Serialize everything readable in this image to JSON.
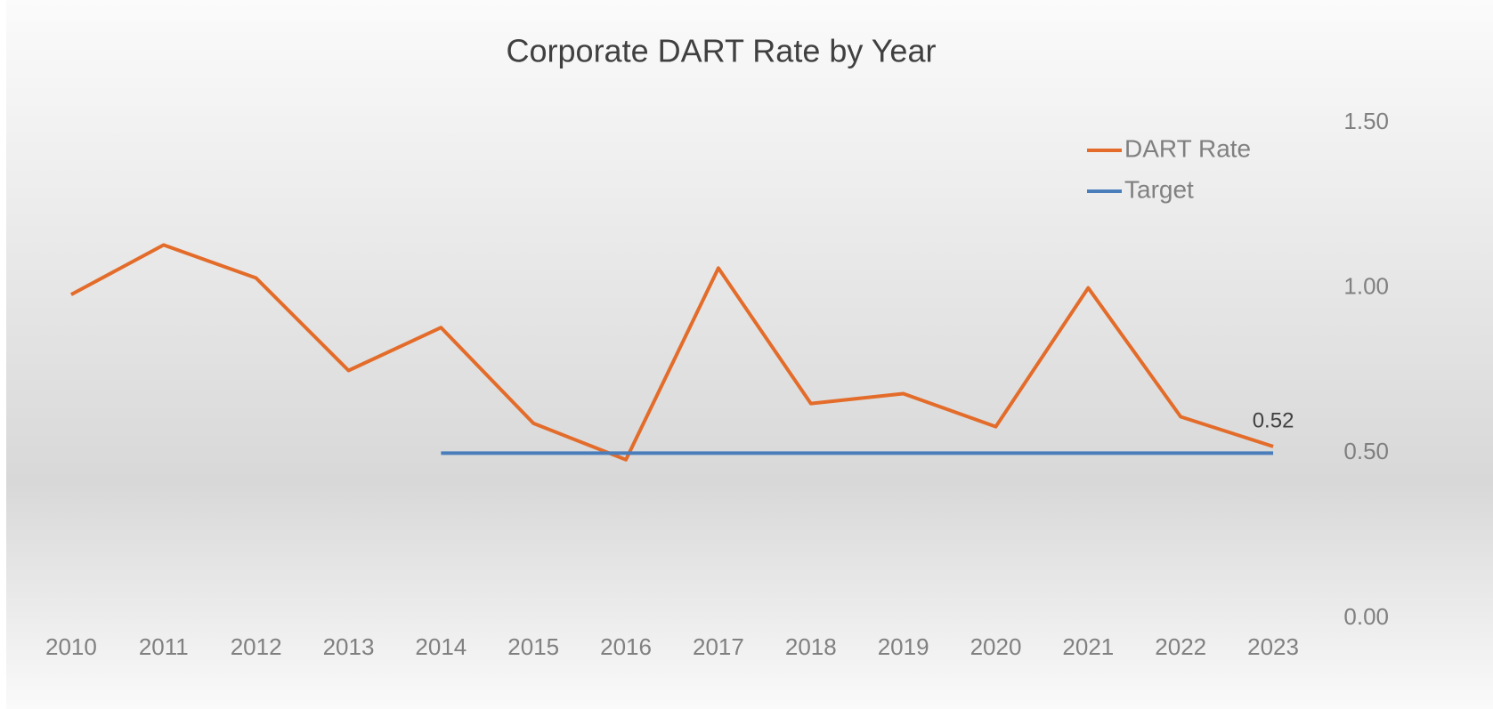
{
  "chart_data": {
    "type": "line",
    "title": "Corporate DART Rate by Year",
    "categories": [
      "2010",
      "2011",
      "2012",
      "2013",
      "2014",
      "2015",
      "2016",
      "2017",
      "2018",
      "2019",
      "2020",
      "2021",
      "2022",
      "2023"
    ],
    "series": [
      {
        "name": "DART Rate",
        "color": "#e36c2a",
        "values": [
          0.98,
          1.13,
          1.03,
          0.75,
          0.88,
          0.59,
          0.48,
          1.06,
          0.65,
          0.68,
          0.58,
          1.0,
          0.61,
          0.52
        ]
      },
      {
        "name": "Target",
        "color": "#4a7ebb",
        "values": [
          null,
          null,
          null,
          null,
          0.5,
          0.5,
          0.5,
          0.5,
          0.5,
          0.5,
          0.5,
          0.5,
          0.5,
          0.5
        ]
      }
    ],
    "data_labels": "last",
    "ylim": [
      0,
      1.5
    ],
    "yticks": [
      {
        "value": 0,
        "label": "0.00"
      },
      {
        "value": 0.5,
        "label": "0.50"
      },
      {
        "value": 1,
        "label": "1.00"
      },
      {
        "value": 1.5,
        "label": "1.50"
      }
    ],
    "y_axis_side": "right",
    "grid": false,
    "legend": "top-right"
  }
}
